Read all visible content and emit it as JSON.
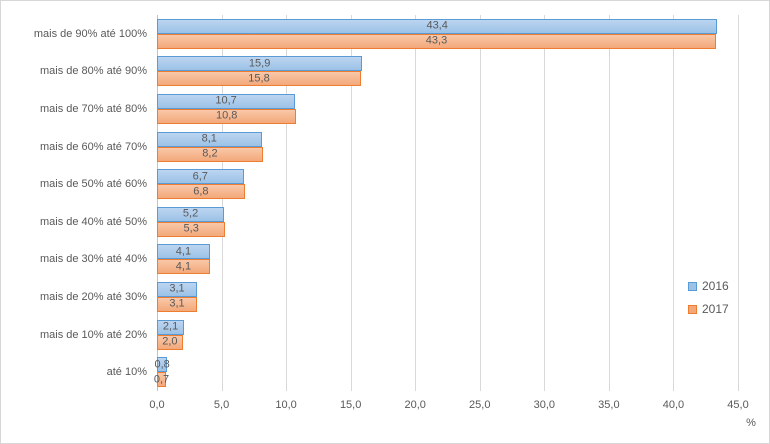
{
  "chart_data": {
    "type": "bar",
    "orientation": "horizontal",
    "title": "",
    "categories": [
      "mais de 90% até 100%",
      "mais de 80% até 90%",
      "mais de 70% até 80%",
      "mais de 60% até 70%",
      "mais de 50% até 60%",
      "mais de 40% até 50%",
      "mais de 30% até 40%",
      "mais de 20% até 30%",
      "mais de 10% até 20%",
      "até 10%"
    ],
    "series": [
      {
        "name": "2016",
        "values": [
          43.4,
          15.9,
          10.7,
          8.1,
          6.7,
          5.2,
          4.1,
          3.1,
          2.1,
          0.8
        ],
        "labels": [
          "43,4",
          "15,9",
          "10,7",
          "8,1",
          "6,7",
          "5,2",
          "4,1",
          "3,1",
          "2,1",
          "0,8"
        ],
        "fill": "#9cc2e6",
        "border": "#5b9bd5"
      },
      {
        "name": "2017",
        "values": [
          43.3,
          15.8,
          10.8,
          8.2,
          6.8,
          5.3,
          4.1,
          3.1,
          2.0,
          0.7
        ],
        "labels": [
          "43,3",
          "15,8",
          "10,8",
          "8,2",
          "6,8",
          "5,3",
          "4,1",
          "3,1",
          "2,0",
          "0,7"
        ],
        "fill": "#f3a87a",
        "border": "#ed7d31"
      }
    ],
    "xlabel": "%",
    "xlim": [
      0,
      45
    ],
    "xticks": {
      "values": [
        0,
        5,
        10,
        15,
        20,
        25,
        30,
        35,
        40,
        45
      ],
      "labels": [
        "0,0",
        "5,0",
        "10,0",
        "15,0",
        "20,0",
        "25,0",
        "30,0",
        "35,0",
        "40,0",
        "45,0"
      ]
    },
    "legend": {
      "position": "right"
    },
    "grid": true,
    "data_labels": true
  },
  "colors": {
    "text": "#595959",
    "gridline": "#d9d9d9",
    "axis_line": "#c3c3c3",
    "chart_border": "#d7d7d7",
    "background": "#ffffff"
  }
}
